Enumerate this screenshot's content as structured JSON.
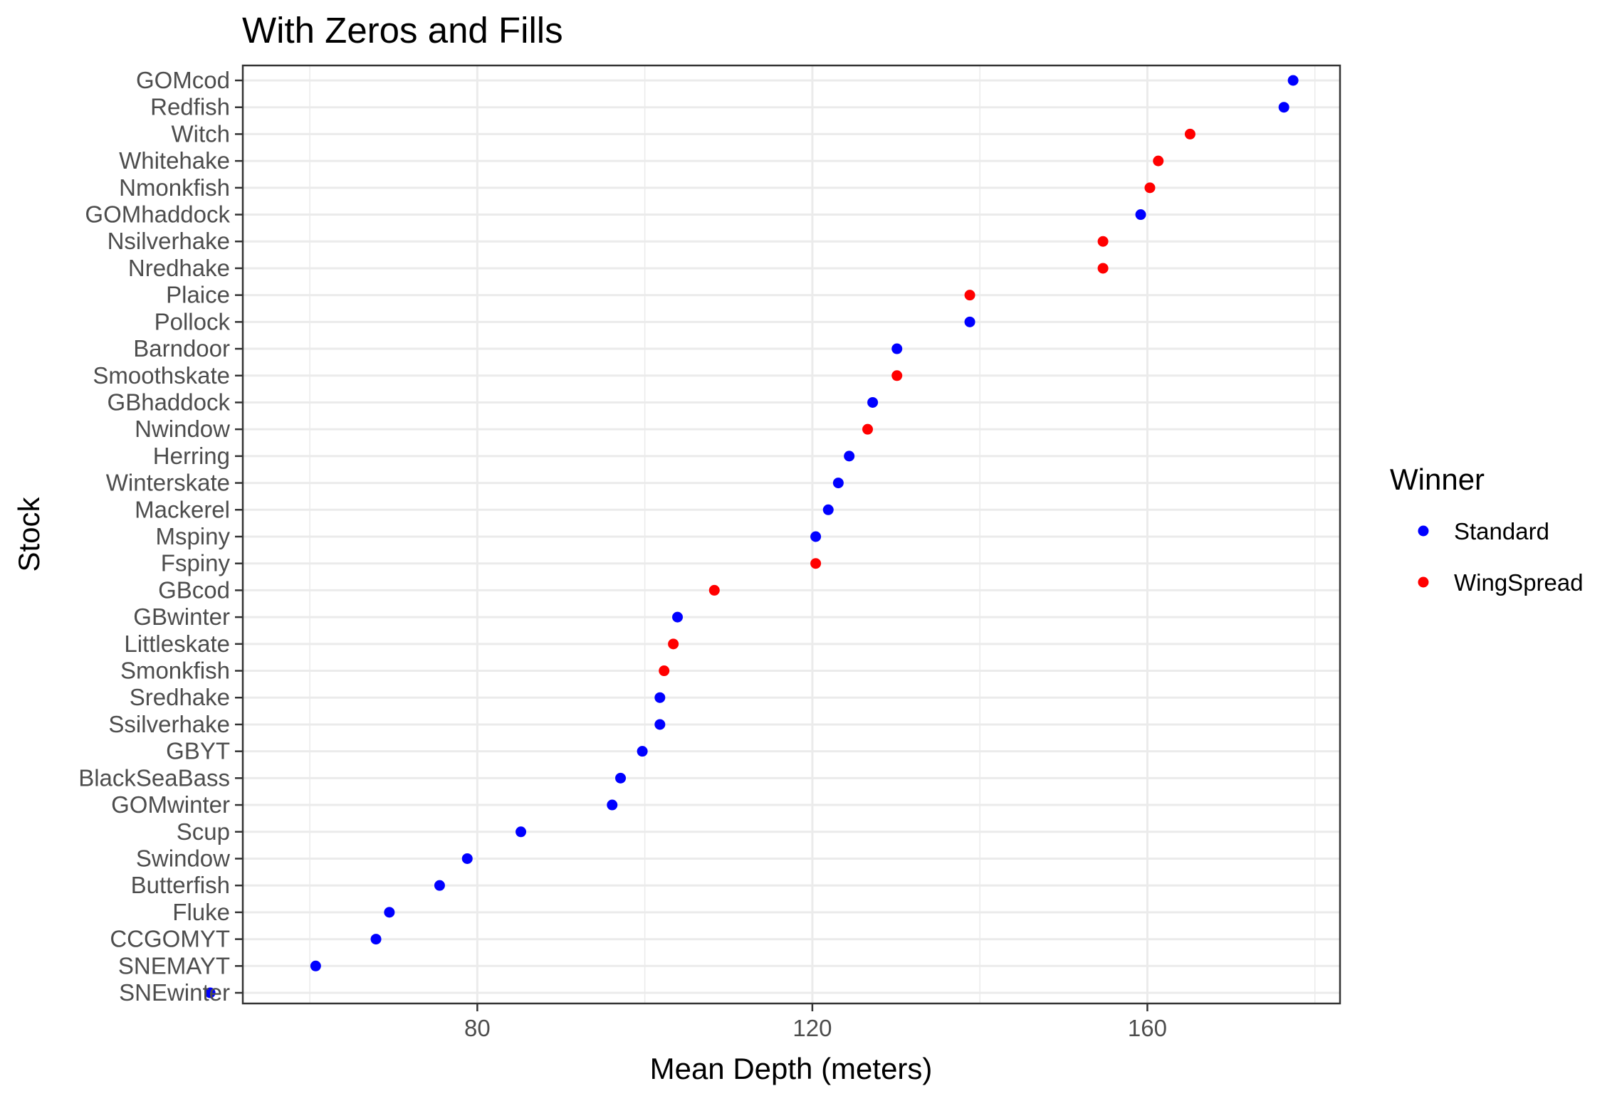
{
  "chart_data": {
    "type": "scatter",
    "title": "With Zeros and Fills",
    "xlabel": "Mean Depth (meters)",
    "ylabel": "Stock",
    "xlim": [
      52,
      183
    ],
    "xticks": [
      80,
      120,
      160
    ],
    "grid": true,
    "legend": {
      "title": "Winner",
      "placement": "right",
      "entries": [
        {
          "name": "Standard",
          "color": "#0000ff"
        },
        {
          "name": "WingSpread",
          "color": "#ff0000"
        }
      ]
    },
    "categories": [
      "GOMcod",
      "Redfish",
      "Witch",
      "Whitehake",
      "Nmonkfish",
      "GOMhaddock",
      "Nsilverhake",
      "Nredhake",
      "Plaice",
      "Pollock",
      "Barndoor",
      "Smoothskate",
      "GBhaddock",
      "Nwindow",
      "Herring",
      "Winterskate",
      "Mackerel",
      "Mspiny",
      "Fspiny",
      "GBcod",
      "GBwinter",
      "Littleskate",
      "Smonkfish",
      "Sredhake",
      "Ssilverhake",
      "GBYT",
      "BlackSeaBass",
      "GOMwinter",
      "Scup",
      "Swindow",
      "Butterfish",
      "Fluke",
      "CCGOMYT",
      "SNEMAYT",
      "SNEwinter"
    ],
    "series": [
      {
        "name": "Standard",
        "color": "#0000ff",
        "points": [
          {
            "stock": "GOMcod",
            "x": 177.4
          },
          {
            "stock": "Redfish",
            "x": 176.3
          },
          {
            "stock": "GOMhaddock",
            "x": 159.2
          },
          {
            "stock": "Pollock",
            "x": 138.8
          },
          {
            "stock": "Barndoor",
            "x": 130.1
          },
          {
            "stock": "GBhaddock",
            "x": 127.2
          },
          {
            "stock": "Herring",
            "x": 124.4
          },
          {
            "stock": "Winterskate",
            "x": 123.1
          },
          {
            "stock": "Mackerel",
            "x": 121.9
          },
          {
            "stock": "Mspiny",
            "x": 120.4
          },
          {
            "stock": "GBwinter",
            "x": 103.9
          },
          {
            "stock": "Sredhake",
            "x": 101.8
          },
          {
            "stock": "Ssilverhake",
            "x": 101.8
          },
          {
            "stock": "GBYT",
            "x": 99.7
          },
          {
            "stock": "BlackSeaBass",
            "x": 97.1
          },
          {
            "stock": "GOMwinter",
            "x": 96.1
          },
          {
            "stock": "Scup",
            "x": 85.2
          },
          {
            "stock": "Swindow",
            "x": 78.8
          },
          {
            "stock": "Butterfish",
            "x": 75.5
          },
          {
            "stock": "Fluke",
            "x": 69.5
          },
          {
            "stock": "CCGOMYT",
            "x": 67.9
          },
          {
            "stock": "SNEMAYT",
            "x": 60.7
          },
          {
            "stock": "SNEwinter",
            "x": 48.1
          }
        ]
      },
      {
        "name": "WingSpread",
        "color": "#ff0000",
        "points": [
          {
            "stock": "Witch",
            "x": 165.1
          },
          {
            "stock": "Whitehake",
            "x": 161.3
          },
          {
            "stock": "Nmonkfish",
            "x": 160.3
          },
          {
            "stock": "Nsilverhake",
            "x": 154.7
          },
          {
            "stock": "Nredhake",
            "x": 154.7
          },
          {
            "stock": "Plaice",
            "x": 138.8
          },
          {
            "stock": "Smoothskate",
            "x": 130.1
          },
          {
            "stock": "Nwindow",
            "x": 126.6
          },
          {
            "stock": "Fspiny",
            "x": 120.4
          },
          {
            "stock": "GBcod",
            "x": 108.3
          },
          {
            "stock": "Littleskate",
            "x": 103.4
          },
          {
            "stock": "Smonkfish",
            "x": 102.3
          }
        ]
      }
    ]
  }
}
